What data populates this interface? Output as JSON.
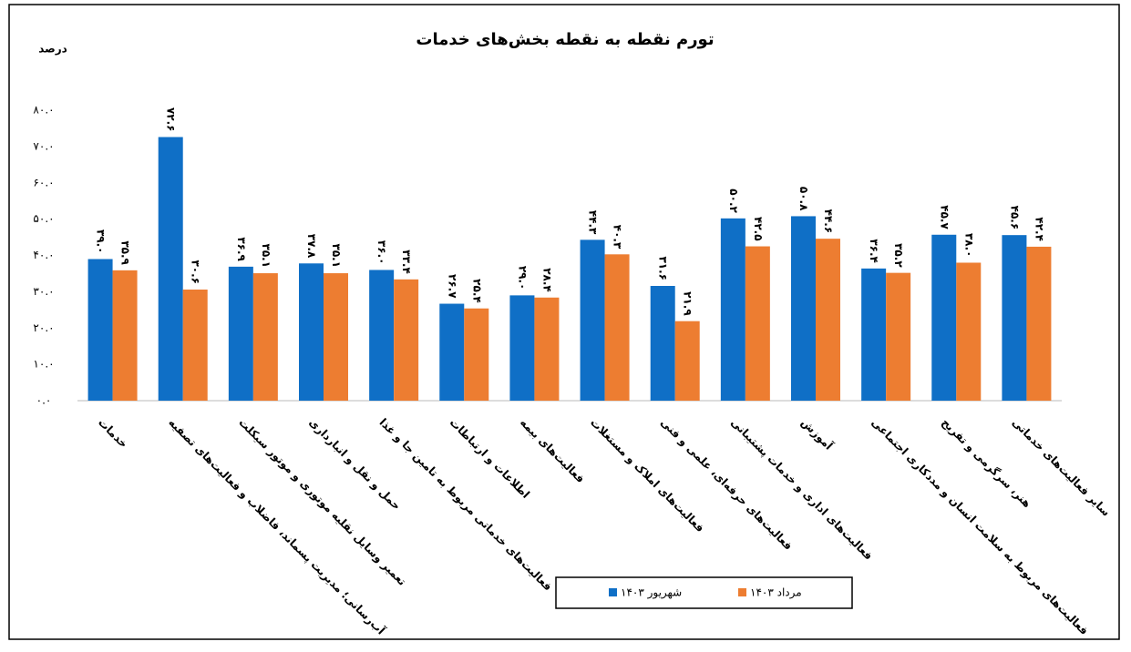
{
  "chart_data": {
    "type": "bar",
    "title": "تورم نقطه به نقطه بخش‌های خدمات",
    "y_label": "درصد",
    "categories": [
      "خدمات",
      "آب‌رسانی؛ مدیریت پسماند، فاضلاب و فعالیت‌های تصفیه",
      "تعمیر وسایل نقلیه موتوری و موتور سیکلت",
      "حمل و نقل و انبارداری",
      "فعالیت‌های خدماتی مربوط به تامین جا و غذا",
      "اطلاعات و ارتباطات",
      "فعالیت‌های بیمه",
      "فعالیت‌های املاک و مستغلات",
      "فعالیت‌های حرفه‌ای، علمی و فنی",
      "فعالیت‌های اداری و خدمات پشتیبانی",
      "آموزش",
      "فعالیت‌های مربوط به سلامت انسان و مددکاری اجتماعی",
      "هنر، سرگرمی و تفریح",
      "سایر فعالیت‌های خدماتی"
    ],
    "series": [
      {
        "name": "شهریور ۱۴۰۳",
        "color": "#0f6fc6",
        "values": [
          39.0,
          72.6,
          36.9,
          37.8,
          36.0,
          26.7,
          29.0,
          44.3,
          31.6,
          50.2,
          50.8,
          36.4,
          45.7,
          45.6
        ],
        "value_labels": [
          "۳۹.۰",
          "۷۲.۶",
          "۳۶.۹",
          "۳۷.۸",
          "۳۶.۰",
          "۲۶.۷",
          "۲۹.۰",
          "۴۴.۳",
          "۳۱.۶",
          "۵۰.۲",
          "۵۰.۸",
          "۳۶.۴",
          "۴۵.۷",
          "۴۵.۶"
        ]
      },
      {
        "name": "مرداد ۱۴۰۳",
        "color": "#ed7d31",
        "values": [
          35.9,
          30.6,
          35.1,
          35.1,
          33.4,
          25.4,
          28.4,
          40.3,
          21.9,
          42.5,
          44.6,
          35.2,
          38.0,
          42.4
        ],
        "value_labels": [
          "۳۵.۹",
          "۳۰.۶",
          "۳۵.۱",
          "۳۵.۱",
          "۳۳.۴",
          "۲۵.۴",
          "۲۸.۴",
          "۴۰.۳",
          "۲۱.۹",
          "۴۲.۵",
          "۴۴.۶",
          "۳۵.۲",
          "۳۸.۰",
          "۴۲.۴"
        ]
      }
    ],
    "ylim": [
      0,
      80
    ],
    "yticks": [
      {
        "value": 0,
        "label": "۰.۰"
      },
      {
        "value": 10,
        "label": "۱۰.۰"
      },
      {
        "value": 20,
        "label": "۲۰.۰"
      },
      {
        "value": 30,
        "label": "۳۰.۰"
      },
      {
        "value": 40,
        "label": "۴۰.۰"
      },
      {
        "value": 50,
        "label": "۵۰.۰"
      },
      {
        "value": 60,
        "label": "۶۰.۰"
      },
      {
        "value": 70,
        "label": "۷۰.۰"
      },
      {
        "value": 80,
        "label": "۸۰.۰"
      }
    ],
    "grid": false,
    "legend": "bottom"
  }
}
